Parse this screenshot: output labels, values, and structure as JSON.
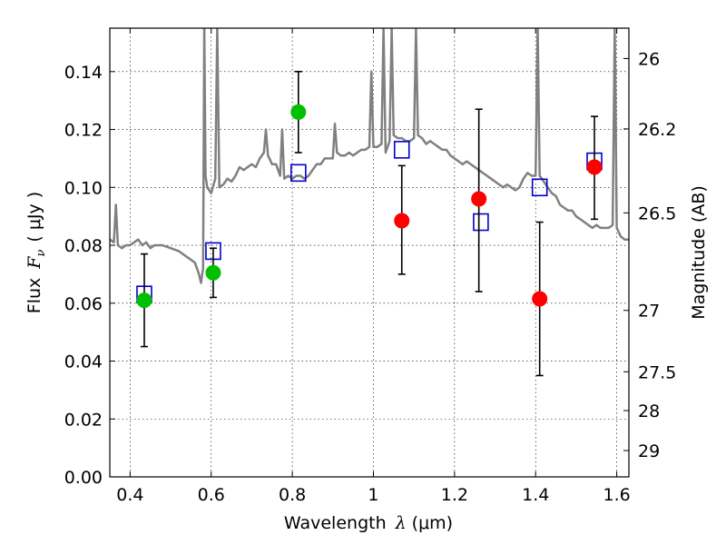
{
  "chart_data": {
    "type": "scatter",
    "title": "",
    "xlabel": {
      "text": "Wavelength",
      "symbol": "λ",
      "unit": "(μm)"
    },
    "ylabel": {
      "text": "Flux",
      "symbol": "F",
      "subscript": "ν",
      "unit": "( μJy )"
    },
    "y2label": "Magnitude (AB)",
    "xlim": [
      0.35,
      1.63
    ],
    "ylim": [
      0.0,
      0.155
    ],
    "grid": true,
    "x_ticks": [
      0.4,
      0.6,
      0.8,
      1.0,
      1.2,
      1.4,
      1.6
    ],
    "x_tick_labels": [
      "0.4",
      "0.6",
      "0.8",
      "1",
      "1.2",
      "1.4",
      "1.6"
    ],
    "y_ticks": [
      0.0,
      0.02,
      0.04,
      0.06,
      0.08,
      0.1,
      0.12,
      0.14
    ],
    "y_tick_labels": [
      "0.00",
      "0.02",
      "0.04",
      "0.06",
      "0.08",
      "0.10",
      "0.12",
      "0.14"
    ],
    "y2_ticks": [
      {
        "label": "26",
        "flux": 0.1445
      },
      {
        "label": "26.2",
        "flux": 0.1202
      },
      {
        "label": "26.5",
        "flux": 0.0912
      },
      {
        "label": "27",
        "flux": 0.0575
      },
      {
        "label": "27.5",
        "flux": 0.0363
      },
      {
        "label": "28",
        "flux": 0.0229
      },
      {
        "label": "29",
        "flux": 0.0091
      }
    ],
    "series": [
      {
        "kind": "line",
        "color": "#808080",
        "points": [
          [
            0.35,
            0.082
          ],
          [
            0.36,
            0.081
          ],
          [
            0.365,
            0.094
          ],
          [
            0.37,
            0.08
          ],
          [
            0.38,
            0.079
          ],
          [
            0.39,
            0.08
          ],
          [
            0.4,
            0.08
          ],
          [
            0.41,
            0.081
          ],
          [
            0.42,
            0.082
          ],
          [
            0.43,
            0.08
          ],
          [
            0.44,
            0.081
          ],
          [
            0.45,
            0.079
          ],
          [
            0.46,
            0.08
          ],
          [
            0.48,
            0.08
          ],
          [
            0.5,
            0.079
          ],
          [
            0.52,
            0.078
          ],
          [
            0.53,
            0.077
          ],
          [
            0.54,
            0.076
          ],
          [
            0.55,
            0.075
          ],
          [
            0.56,
            0.074
          ],
          [
            0.57,
            0.07
          ],
          [
            0.575,
            0.067
          ],
          [
            0.58,
            0.072
          ],
          [
            0.583,
            0.155
          ],
          [
            0.586,
            0.104
          ],
          [
            0.59,
            0.1
          ],
          [
            0.6,
            0.098
          ],
          [
            0.61,
            0.103
          ],
          [
            0.615,
            0.155
          ],
          [
            0.62,
            0.1
          ],
          [
            0.63,
            0.101
          ],
          [
            0.64,
            0.103
          ],
          [
            0.65,
            0.102
          ],
          [
            0.66,
            0.104
          ],
          [
            0.67,
            0.107
          ],
          [
            0.68,
            0.106
          ],
          [
            0.69,
            0.107
          ],
          [
            0.7,
            0.108
          ],
          [
            0.71,
            0.107
          ],
          [
            0.72,
            0.11
          ],
          [
            0.73,
            0.112
          ],
          [
            0.735,
            0.12
          ],
          [
            0.74,
            0.111
          ],
          [
            0.75,
            0.108
          ],
          [
            0.76,
            0.108
          ],
          [
            0.77,
            0.104
          ],
          [
            0.775,
            0.12
          ],
          [
            0.78,
            0.103
          ],
          [
            0.79,
            0.104
          ],
          [
            0.8,
            0.103
          ],
          [
            0.81,
            0.104
          ],
          [
            0.82,
            0.104
          ],
          [
            0.83,
            0.103
          ],
          [
            0.84,
            0.104
          ],
          [
            0.85,
            0.106
          ],
          [
            0.86,
            0.108
          ],
          [
            0.87,
            0.108
          ],
          [
            0.88,
            0.11
          ],
          [
            0.89,
            0.11
          ],
          [
            0.9,
            0.11
          ],
          [
            0.905,
            0.122
          ],
          [
            0.91,
            0.112
          ],
          [
            0.92,
            0.111
          ],
          [
            0.93,
            0.111
          ],
          [
            0.94,
            0.112
          ],
          [
            0.95,
            0.111
          ],
          [
            0.96,
            0.112
          ],
          [
            0.97,
            0.113
          ],
          [
            0.98,
            0.113
          ],
          [
            0.99,
            0.114
          ],
          [
            0.995,
            0.14
          ],
          [
            1.0,
            0.114
          ],
          [
            1.01,
            0.114
          ],
          [
            1.02,
            0.115
          ],
          [
            1.025,
            0.155
          ],
          [
            1.03,
            0.112
          ],
          [
            1.04,
            0.116
          ],
          [
            1.045,
            0.155
          ],
          [
            1.05,
            0.118
          ],
          [
            1.06,
            0.117
          ],
          [
            1.07,
            0.117
          ],
          [
            1.08,
            0.116
          ],
          [
            1.09,
            0.116
          ],
          [
            1.1,
            0.117
          ],
          [
            1.105,
            0.155
          ],
          [
            1.11,
            0.118
          ],
          [
            1.12,
            0.117
          ],
          [
            1.13,
            0.115
          ],
          [
            1.14,
            0.116
          ],
          [
            1.15,
            0.115
          ],
          [
            1.16,
            0.114
          ],
          [
            1.17,
            0.113
          ],
          [
            1.18,
            0.113
          ],
          [
            1.19,
            0.111
          ],
          [
            1.2,
            0.11
          ],
          [
            1.21,
            0.109
          ],
          [
            1.22,
            0.108
          ],
          [
            1.23,
            0.109
          ],
          [
            1.24,
            0.108
          ],
          [
            1.25,
            0.107
          ],
          [
            1.26,
            0.106
          ],
          [
            1.27,
            0.105
          ],
          [
            1.28,
            0.104
          ],
          [
            1.29,
            0.103
          ],
          [
            1.3,
            0.102
          ],
          [
            1.31,
            0.101
          ],
          [
            1.32,
            0.1
          ],
          [
            1.33,
            0.101
          ],
          [
            1.34,
            0.1
          ],
          [
            1.35,
            0.099
          ],
          [
            1.36,
            0.1
          ],
          [
            1.37,
            0.103
          ],
          [
            1.38,
            0.105
          ],
          [
            1.39,
            0.104
          ],
          [
            1.4,
            0.104
          ],
          [
            1.405,
            0.155
          ],
          [
            1.41,
            0.104
          ],
          [
            1.42,
            0.102
          ],
          [
            1.43,
            0.1
          ],
          [
            1.44,
            0.098
          ],
          [
            1.45,
            0.097
          ],
          [
            1.46,
            0.094
          ],
          [
            1.47,
            0.093
          ],
          [
            1.48,
            0.092
          ],
          [
            1.49,
            0.092
          ],
          [
            1.5,
            0.09
          ],
          [
            1.51,
            0.089
          ],
          [
            1.52,
            0.088
          ],
          [
            1.53,
            0.087
          ],
          [
            1.54,
            0.086
          ],
          [
            1.55,
            0.087
          ],
          [
            1.56,
            0.086
          ],
          [
            1.57,
            0.086
          ],
          [
            1.58,
            0.086
          ],
          [
            1.59,
            0.087
          ],
          [
            1.595,
            0.155
          ],
          [
            1.6,
            0.086
          ],
          [
            1.61,
            0.083
          ],
          [
            1.62,
            0.082
          ],
          [
            1.63,
            0.082
          ]
        ]
      },
      {
        "kind": "squares",
        "color": "#0000cc",
        "points": [
          [
            0.435,
            0.063
          ],
          [
            0.605,
            0.078
          ],
          [
            0.815,
            0.105
          ],
          [
            1.07,
            0.113
          ],
          [
            1.265,
            0.088
          ],
          [
            1.41,
            0.1
          ],
          [
            1.545,
            0.109
          ]
        ]
      },
      {
        "kind": "points",
        "color": "#00c000",
        "points": [
          {
            "x": 0.435,
            "y": 0.061,
            "ylo": 0.045,
            "yhi": 0.077
          },
          {
            "x": 0.605,
            "y": 0.0705,
            "ylo": 0.062,
            "yhi": 0.079
          },
          {
            "x": 0.815,
            "y": 0.126,
            "ylo": 0.112,
            "yhi": 0.14
          }
        ]
      },
      {
        "kind": "points",
        "color": "#ff0000",
        "points": [
          {
            "x": 1.07,
            "y": 0.0885,
            "ylo": 0.07,
            "yhi": 0.1075
          },
          {
            "x": 1.26,
            "y": 0.096,
            "ylo": 0.064,
            "yhi": 0.127
          },
          {
            "x": 1.41,
            "y": 0.0615,
            "ylo": 0.035,
            "yhi": 0.088
          },
          {
            "x": 1.545,
            "y": 0.107,
            "ylo": 0.089,
            "yhi": 0.1245
          }
        ]
      }
    ]
  }
}
